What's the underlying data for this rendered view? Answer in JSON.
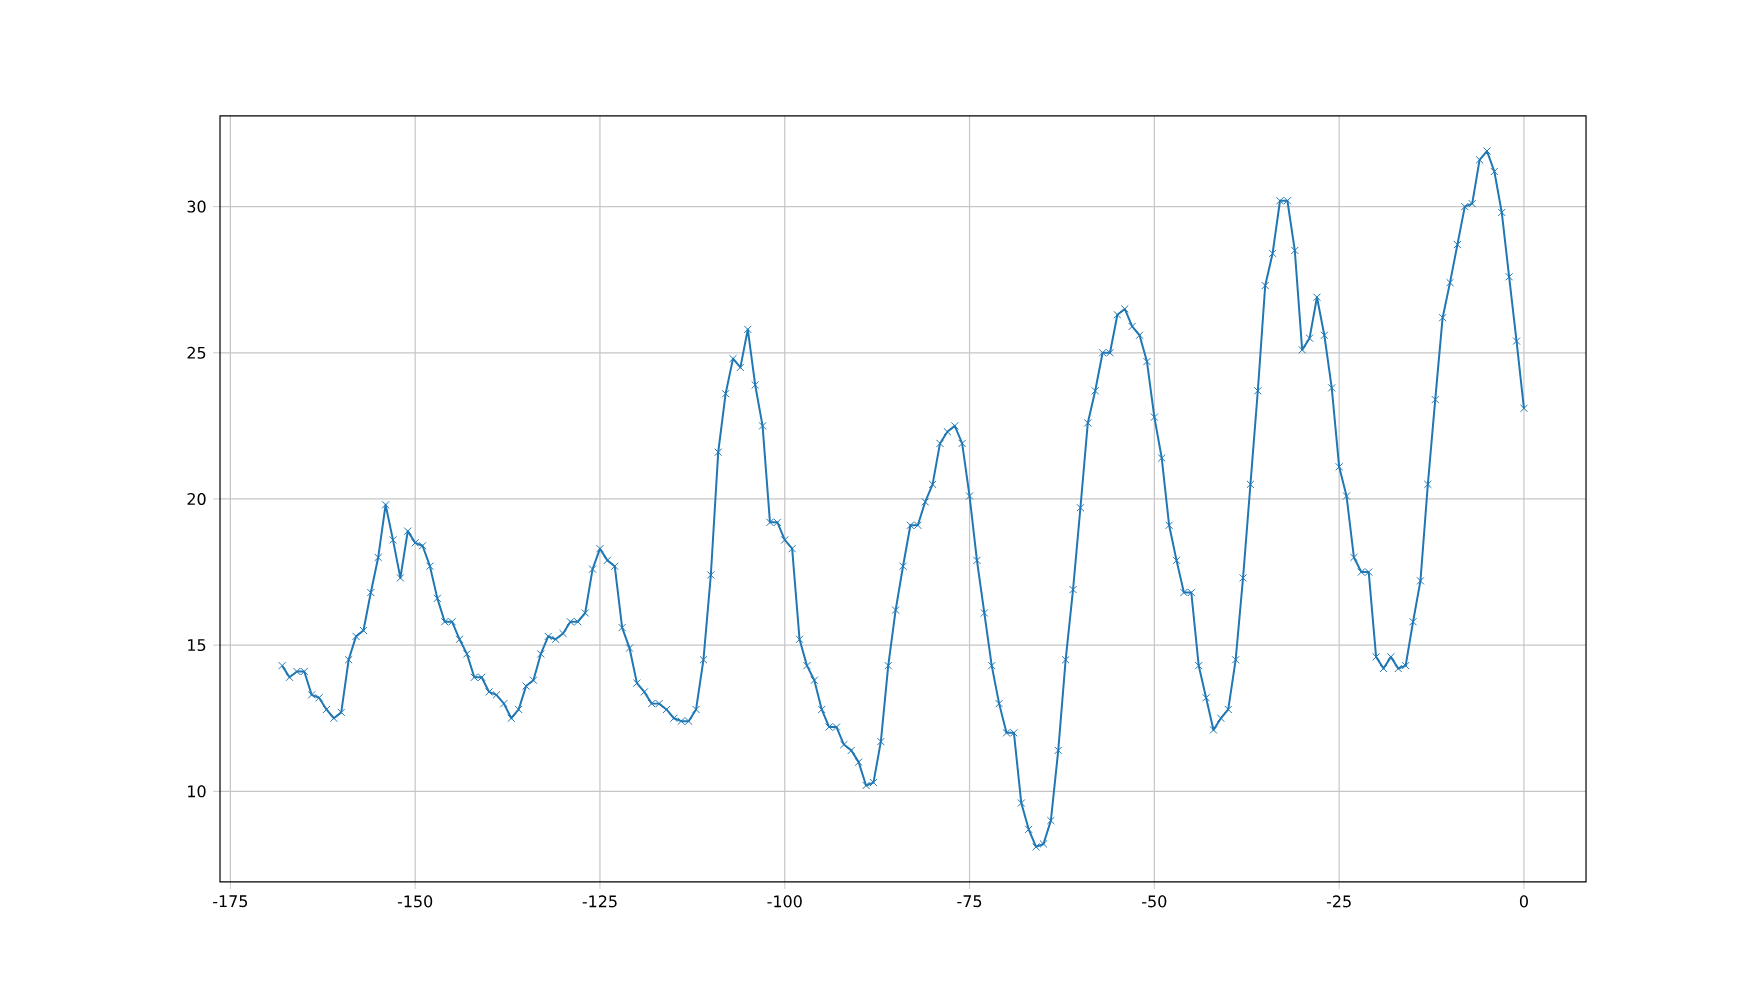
{
  "chart_data": {
    "type": "line",
    "color": "#1f77b4",
    "marker": "cross",
    "grid": true,
    "x": [
      -168,
      -167,
      -166,
      -165,
      -164,
      -163,
      -162,
      -161,
      -160,
      -159,
      -158,
      -157,
      -156,
      -155,
      -154,
      -153,
      -152,
      -151,
      -150,
      -149,
      -148,
      -147,
      -146,
      -145,
      -144,
      -143,
      -142,
      -141,
      -140,
      -139,
      -138,
      -137,
      -136,
      -135,
      -134,
      -133,
      -132,
      -131,
      -130,
      -129,
      -128,
      -127,
      -126,
      -125,
      -124,
      -123,
      -122,
      -121,
      -120,
      -119,
      -118,
      -117,
      -116,
      -115,
      -114,
      -113,
      -112,
      -111,
      -110,
      -109,
      -108,
      -107,
      -106,
      -105,
      -104,
      -103,
      -102,
      -101,
      -100,
      -99,
      -98,
      -97,
      -96,
      -95,
      -94,
      -93,
      -92,
      -91,
      -90,
      -89,
      -88,
      -87,
      -86,
      -85,
      -84,
      -83,
      -82,
      -81,
      -80,
      -79,
      -78,
      -77,
      -76,
      -75,
      -74,
      -73,
      -72,
      -71,
      -70,
      -69,
      -68,
      -67,
      -66,
      -65,
      -64,
      -63,
      -62,
      -61,
      -60,
      -59,
      -58,
      -57,
      -56,
      -55,
      -54,
      -53,
      -52,
      -51,
      -50,
      -49,
      -48,
      -47,
      -46,
      -45,
      -44,
      -43,
      -42,
      -41,
      -40,
      -39,
      -38,
      -37,
      -36,
      -35,
      -34,
      -33,
      -32,
      -31,
      -30,
      -29,
      -28,
      -27,
      -26,
      -25,
      -24,
      -23,
      -22,
      -21,
      -20,
      -19,
      -18,
      -17,
      -16,
      -15,
      -14,
      -13,
      -12,
      -11,
      -10,
      -9,
      -8,
      -7,
      -6,
      -5,
      -4,
      -3,
      -2,
      -1,
      0
    ],
    "values": [
      14.3,
      13.9,
      14.1,
      14.1,
      13.3,
      13.2,
      12.8,
      12.5,
      12.7,
      14.5,
      15.3,
      15.5,
      16.8,
      18.0,
      19.8,
      18.6,
      17.3,
      18.9,
      18.5,
      18.4,
      17.7,
      16.6,
      15.8,
      15.8,
      15.2,
      14.7,
      13.9,
      13.9,
      13.4,
      13.3,
      13.0,
      12.5,
      12.8,
      13.6,
      13.8,
      14.7,
      15.3,
      15.2,
      15.4,
      15.8,
      15.8,
      16.1,
      17.6,
      18.3,
      17.9,
      17.7,
      15.6,
      14.9,
      13.7,
      13.4,
      13.0,
      13.0,
      12.8,
      12.5,
      12.4,
      12.4,
      12.8,
      14.5,
      17.4,
      21.6,
      23.6,
      24.8,
      24.5,
      25.8,
      23.9,
      22.5,
      19.2,
      19.2,
      18.6,
      18.3,
      15.2,
      14.3,
      13.8,
      12.8,
      12.2,
      12.2,
      11.6,
      11.4,
      11.0,
      10.2,
      10.3,
      11.7,
      14.3,
      16.2,
      17.7,
      19.1,
      19.1,
      19.9,
      20.5,
      21.9,
      22.3,
      22.5,
      21.9,
      20.1,
      17.9,
      16.1,
      14.3,
      13.0,
      12.0,
      12.0,
      9.6,
      8.7,
      8.1,
      8.2,
      9.0,
      11.4,
      14.5,
      16.9,
      19.7,
      22.6,
      23.7,
      25.0,
      25.0,
      26.3,
      26.5,
      25.9,
      25.6,
      24.7,
      22.8,
      21.4,
      19.1,
      17.9,
      16.8,
      16.8,
      14.3,
      13.2,
      12.1,
      12.5,
      12.8,
      14.5,
      17.3,
      20.5,
      23.7,
      27.3,
      28.4,
      30.2,
      30.2,
      28.5,
      25.1,
      25.5,
      26.9,
      25.6,
      23.8,
      21.1,
      20.1,
      18.0,
      17.5,
      17.5,
      14.6,
      14.2,
      14.6,
      14.2,
      14.3,
      15.8,
      17.2,
      20.5,
      23.4,
      26.2,
      27.4,
      28.7,
      30.0,
      30.1,
      31.6,
      31.9,
      31.2,
      29.8,
      27.6,
      25.4,
      23.1
    ],
    "xlim": [
      -176.4,
      8.4
    ],
    "ylim": [
      6.9,
      33.1
    ],
    "xticks": [
      -175,
      -150,
      -125,
      -100,
      -75,
      -50,
      -25,
      0
    ],
    "yticks": [
      10,
      15,
      20,
      25,
      30
    ]
  }
}
